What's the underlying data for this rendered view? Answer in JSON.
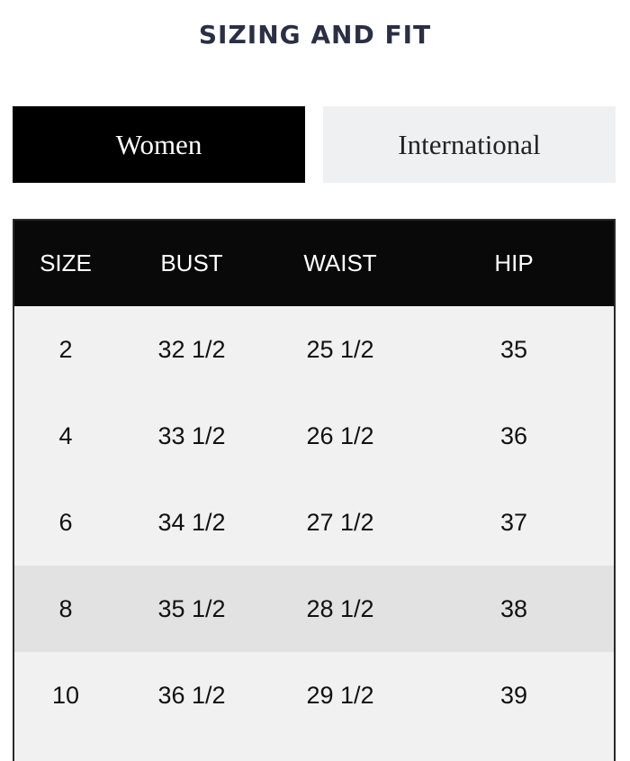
{
  "title": "SIZING AND FIT",
  "tabs": [
    {
      "label": "Women",
      "active": true
    },
    {
      "label": "International",
      "active": false
    }
  ],
  "table": {
    "headers": [
      "SIZE",
      "BUST",
      "WAIST",
      "HIP"
    ],
    "rows": [
      [
        "2",
        "32 1/2",
        "25 1/2",
        "35"
      ],
      [
        "4",
        "33 1/2",
        "26 1/2",
        "36"
      ],
      [
        "6",
        "34 1/2",
        "27 1/2",
        "37"
      ],
      [
        "8",
        "35 1/2",
        "28 1/2",
        "38"
      ],
      [
        "10",
        "36 1/2",
        "29 1/2",
        "39"
      ]
    ],
    "highlighted_row_index": 3
  },
  "colors": {
    "title": "#2a2f45",
    "active_tab": "#000000",
    "inactive_tab": "#eff0f2",
    "row_bg": "#f1f1f1",
    "row_highlight": "#e2e2e2"
  }
}
